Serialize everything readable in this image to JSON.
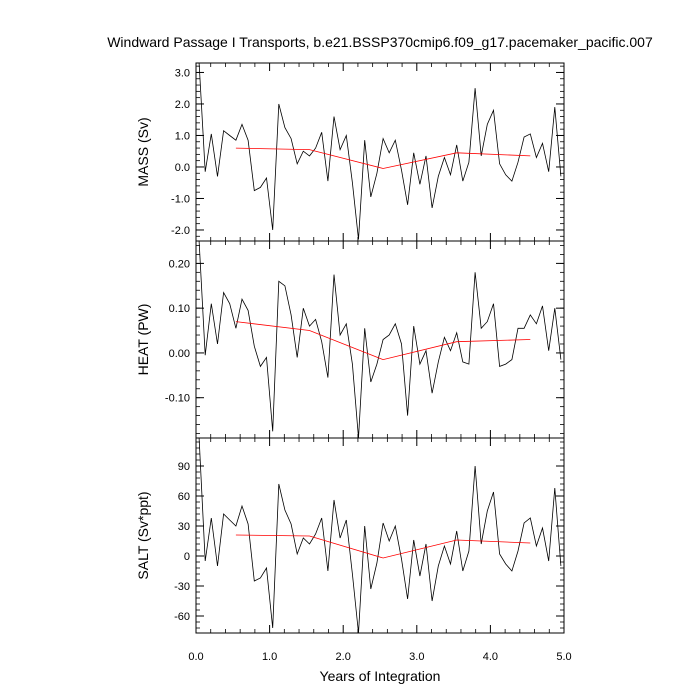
{
  "chart_data": {
    "type": "line",
    "title": "Windward Passage I Transports, b.e21.BSSP370cmip6.f09_g17.pacemaker_pacific.007",
    "xlabel": "Years of Integration",
    "xlim": [
      0,
      5
    ],
    "xticks": [
      "0.0",
      "1.0",
      "2.0",
      "3.0",
      "4.0",
      "5.0"
    ],
    "colors": {
      "raw": "#000000",
      "smoothed": "#ff0000"
    },
    "x": [
      0.0417,
      0.125,
      0.2083,
      0.2917,
      0.375,
      0.4583,
      0.5417,
      0.625,
      0.7083,
      0.7917,
      0.875,
      0.9583,
      1.0417,
      1.125,
      1.2083,
      1.2917,
      1.375,
      1.4583,
      1.5417,
      1.625,
      1.7083,
      1.7917,
      1.875,
      1.9583,
      2.0417,
      2.125,
      2.2083,
      2.2917,
      2.375,
      2.4583,
      2.5417,
      2.625,
      2.7083,
      2.7917,
      2.875,
      2.9583,
      3.0417,
      3.125,
      3.2083,
      3.2917,
      3.375,
      3.4583,
      3.5417,
      3.625,
      3.7083,
      3.7917,
      3.875,
      3.9583,
      4.0417,
      4.125,
      4.2083,
      4.2917,
      4.375,
      4.4583,
      4.5417,
      4.625,
      4.7083,
      4.7917,
      4.875,
      4.9583
    ],
    "smooth_x": [
      0.5417,
      1.5417,
      2.5417,
      3.5417,
      4.5417
    ],
    "panels": [
      {
        "name": "mass",
        "ylabel": "MASS (Sv)",
        "ylim": [
          -2.35,
          3.3
        ],
        "yticks": [
          3.0,
          2.0,
          1.0,
          0.0,
          -1.0,
          -2.0
        ],
        "ytick_labels": [
          "3.0",
          "2.0",
          "1.0",
          "0.0",
          "-1.0",
          "-2.0"
        ],
        "minor_step": 0.2,
        "values": [
          3.3,
          -0.15,
          1.05,
          -0.3,
          1.15,
          1.0,
          0.85,
          1.35,
          0.85,
          -0.75,
          -0.65,
          -0.35,
          -2.0,
          2.0,
          1.25,
          0.9,
          0.1,
          0.5,
          0.35,
          0.6,
          1.1,
          -0.45,
          1.6,
          0.55,
          1.0,
          -0.5,
          -2.3,
          0.85,
          -0.95,
          -0.2,
          0.9,
          0.45,
          0.85,
          -0.1,
          -1.2,
          0.45,
          -0.55,
          0.35,
          -1.3,
          -0.3,
          0.3,
          -0.25,
          0.7,
          -0.45,
          0.15,
          2.5,
          0.35,
          1.35,
          1.8,
          0.1,
          -0.25,
          -0.45,
          0.15,
          0.95,
          1.05,
          0.3,
          0.75,
          -0.15,
          1.9,
          -0.3
        ],
        "smooth": [
          0.6,
          0.55,
          -0.05,
          0.45,
          0.35
        ]
      },
      {
        "name": "heat",
        "ylabel": "HEAT (PW)",
        "ylim": [
          -0.19,
          0.25
        ],
        "yticks": [
          0.2,
          0.1,
          0.0,
          -0.1
        ],
        "ytick_labels": [
          "0.20",
          "0.10",
          "0.00",
          "-0.10"
        ],
        "minor_step": 0.02,
        "values": [
          0.25,
          -0.005,
          0.11,
          0.02,
          0.135,
          0.11,
          0.055,
          0.12,
          0.095,
          0.015,
          -0.03,
          -0.01,
          -0.175,
          0.16,
          0.15,
          0.085,
          -0.01,
          0.1,
          0.06,
          0.075,
          0.025,
          -0.055,
          0.175,
          0.04,
          0.065,
          -0.025,
          -0.19,
          0.055,
          -0.065,
          -0.025,
          0.03,
          0.04,
          0.065,
          0.02,
          -0.14,
          0.06,
          -0.025,
          0.005,
          -0.09,
          -0.02,
          0.035,
          0.005,
          0.045,
          -0.02,
          -0.025,
          0.18,
          0.055,
          0.07,
          0.11,
          -0.03,
          -0.025,
          -0.015,
          0.055,
          0.055,
          0.085,
          0.065,
          0.105,
          0.005,
          0.1,
          -0.015
        ],
        "smooth": [
          0.07,
          0.05,
          -0.015,
          0.025,
          0.03
        ]
      },
      {
        "name": "salt",
        "ylabel": "SALT (Sv*ppt)",
        "ylim": [
          -77,
          118
        ],
        "yticks": [
          90,
          60,
          30,
          0,
          -30,
          -60
        ],
        "ytick_labels": [
          "90",
          "60",
          "30",
          "0",
          "-30",
          "-60"
        ],
        "minor_step": 6,
        "values": [
          118,
          -5,
          38,
          -10,
          42,
          36,
          30,
          50,
          32,
          -25,
          -22,
          -12,
          -72,
          72,
          46,
          32,
          2,
          18,
          12,
          22,
          38,
          -15,
          56,
          18,
          36,
          -18,
          -77,
          30,
          -33,
          -7,
          33,
          15,
          30,
          -3,
          -43,
          16,
          -20,
          12,
          -45,
          -10,
          10,
          -8,
          25,
          -15,
          5,
          90,
          12,
          45,
          64,
          2,
          -8,
          -15,
          5,
          33,
          38,
          10,
          28,
          -5,
          68,
          -10
        ],
        "smooth": [
          21,
          20,
          -2,
          16,
          13
        ]
      }
    ]
  }
}
